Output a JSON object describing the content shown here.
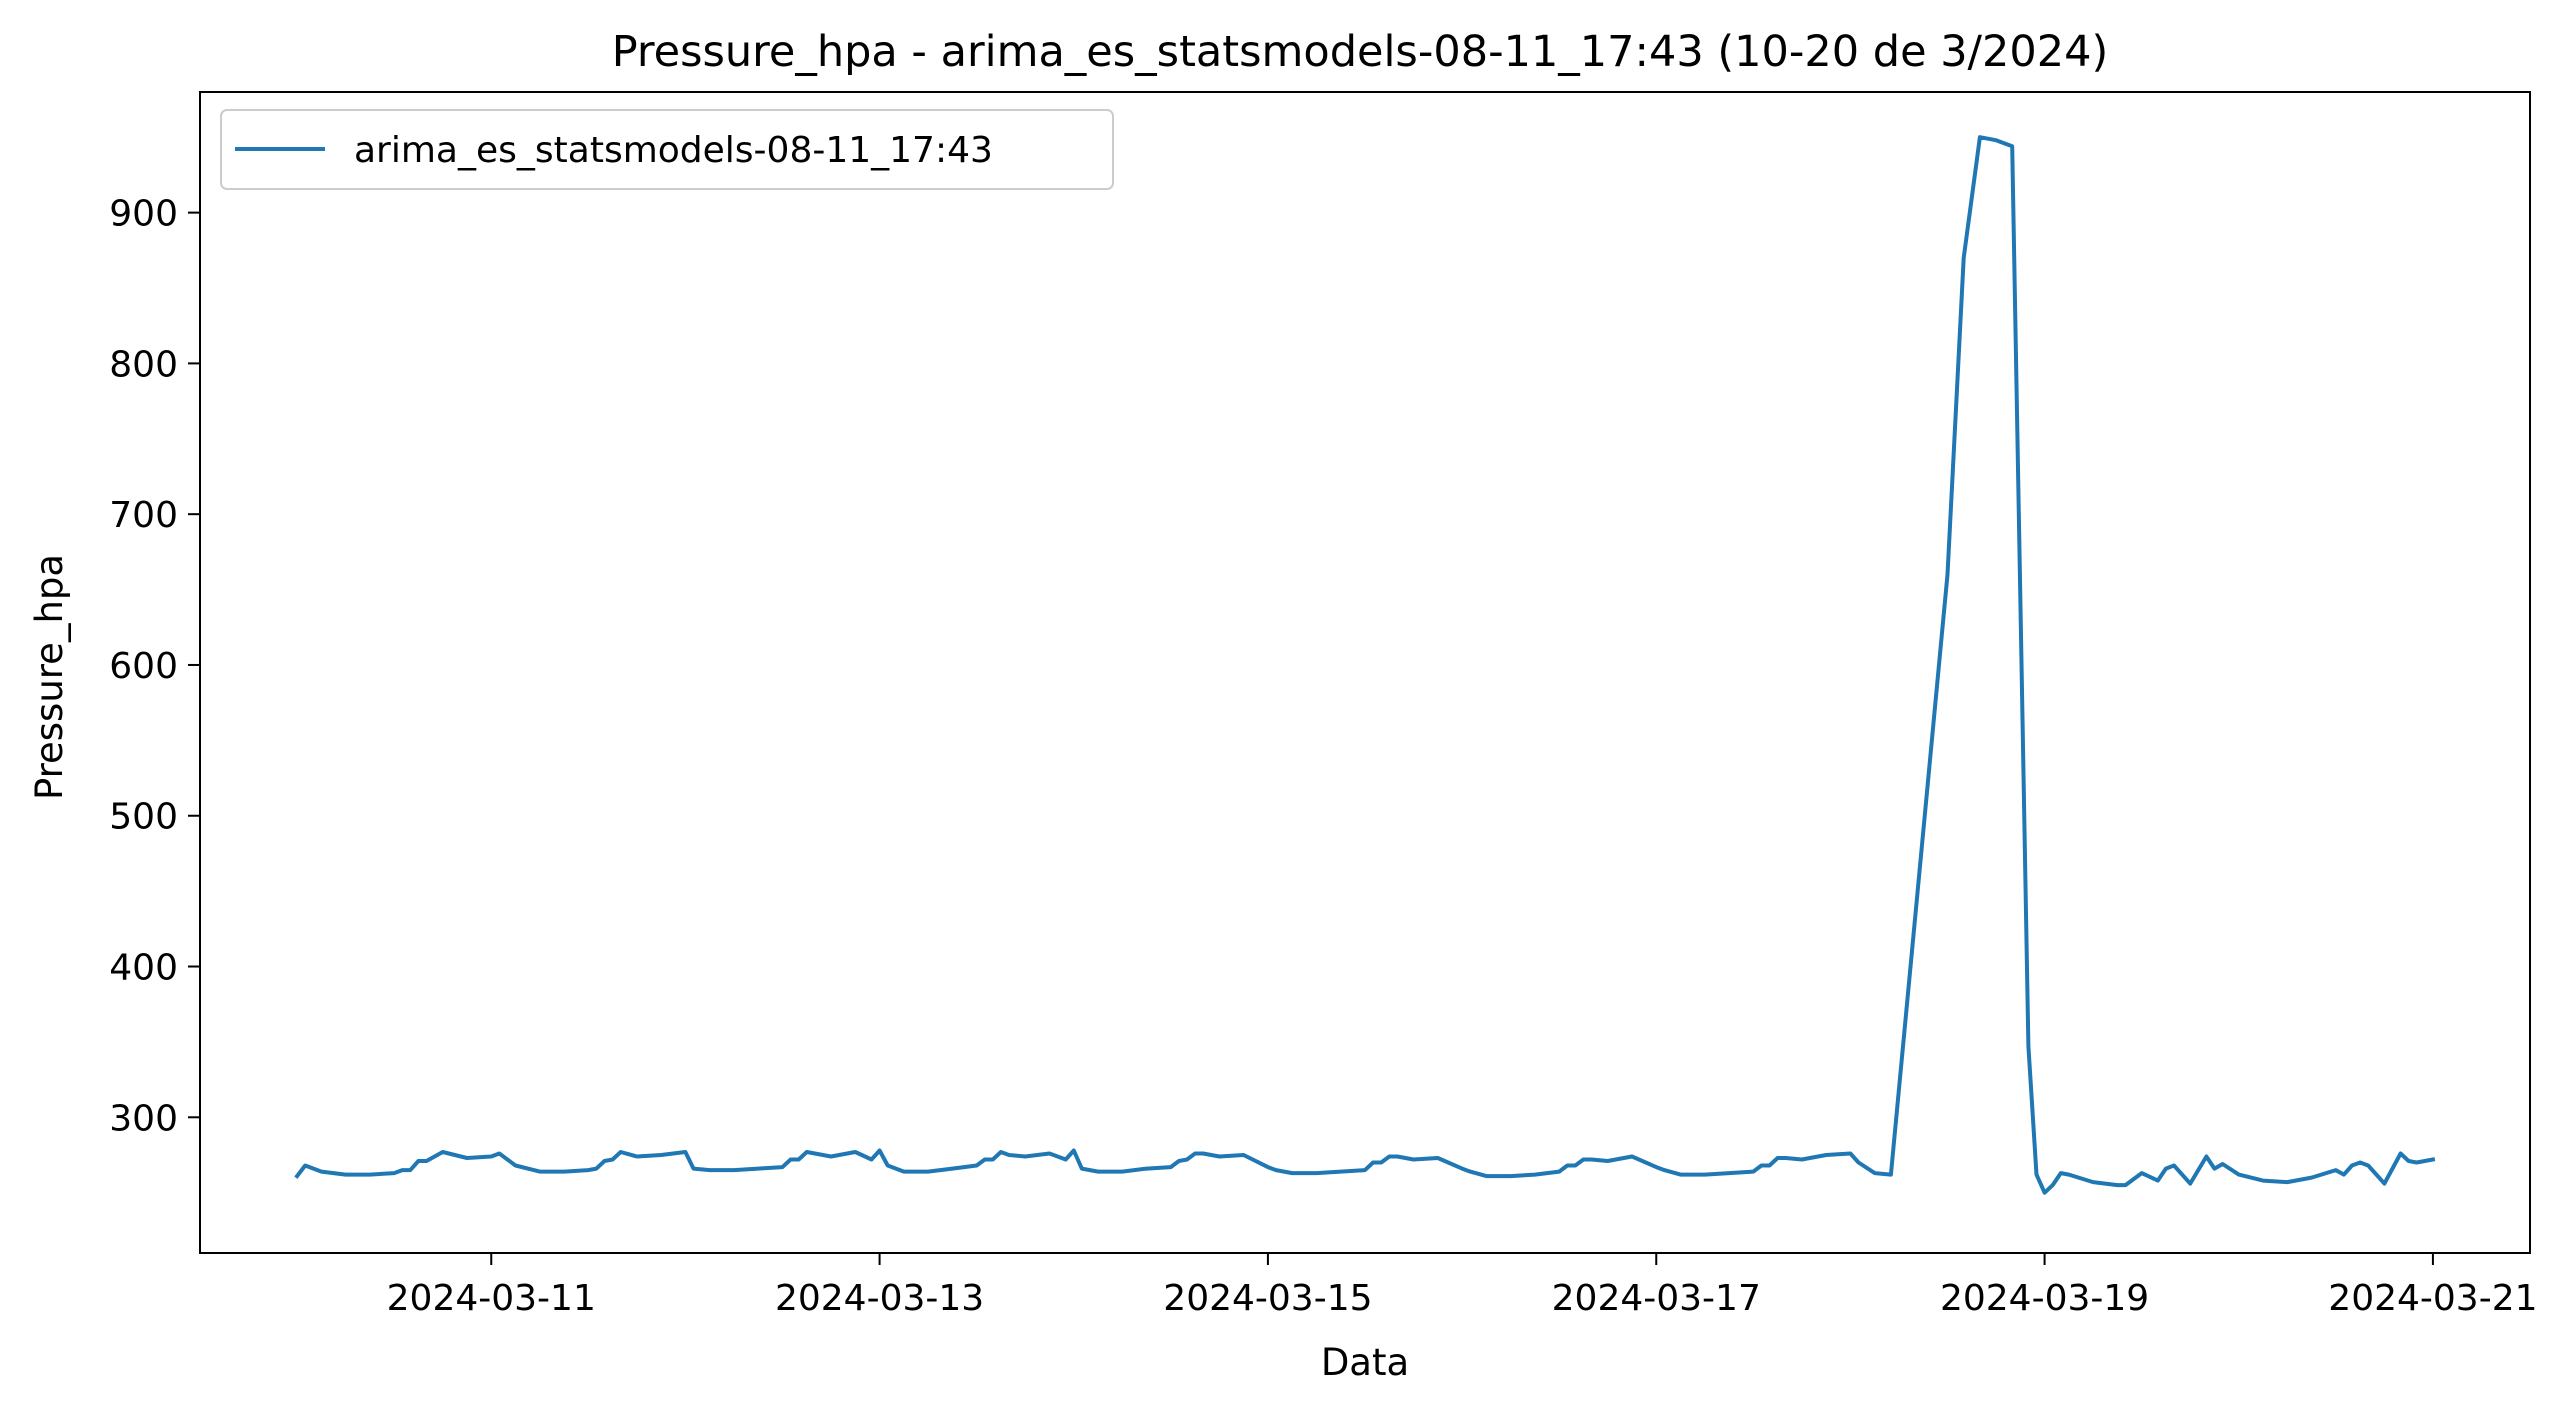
{
  "chart_data": {
    "type": "line",
    "title": "Pressure_hpa - arima_es_statsmodels-08-11_17:43 (10-20 de 3/2024)",
    "xlabel": "Data",
    "ylabel": "Pressure_hpa",
    "xlim": [
      "2024-03-09T12:00",
      "2024-03-21T12:00"
    ],
    "ylim": [
      210,
      980
    ],
    "x_ticks": [
      "2024-03-11",
      "2024-03-13",
      "2024-03-15",
      "2024-03-17",
      "2024-03-19",
      "2024-03-21"
    ],
    "y_ticks": [
      300,
      400,
      500,
      600,
      700,
      800,
      900
    ],
    "grid": false,
    "legend": {
      "position": "top-left",
      "entries": [
        "arima_es_statsmodels-08-11_17:43"
      ]
    },
    "series": [
      {
        "name": "arima_es_statsmodels-08-11_17:43",
        "color": "#1f77b4",
        "x": [
          "2024-03-10T00:00",
          "2024-03-10T01:00",
          "2024-03-10T03:00",
          "2024-03-10T06:00",
          "2024-03-10T09:00",
          "2024-03-10T12:00",
          "2024-03-10T13:00",
          "2024-03-10T14:00",
          "2024-03-10T15:00",
          "2024-03-10T16:00",
          "2024-03-10T18:00",
          "2024-03-10T21:00",
          "2024-03-11T00:00",
          "2024-03-11T01:00",
          "2024-03-11T03:00",
          "2024-03-11T06:00",
          "2024-03-11T09:00",
          "2024-03-11T12:00",
          "2024-03-11T13:00",
          "2024-03-11T14:00",
          "2024-03-11T15:00",
          "2024-03-11T16:00",
          "2024-03-11T18:00",
          "2024-03-11T21:00",
          "2024-03-12T00:00",
          "2024-03-12T01:00",
          "2024-03-12T03:00",
          "2024-03-12T06:00",
          "2024-03-12T09:00",
          "2024-03-12T12:00",
          "2024-03-12T13:00",
          "2024-03-12T14:00",
          "2024-03-12T15:00",
          "2024-03-12T16:00",
          "2024-03-12T18:00",
          "2024-03-12T21:00",
          "2024-03-12T23:00",
          "2024-03-13T00:00",
          "2024-03-13T01:00",
          "2024-03-13T03:00",
          "2024-03-13T06:00",
          "2024-03-13T09:00",
          "2024-03-13T12:00",
          "2024-03-13T13:00",
          "2024-03-13T14:00",
          "2024-03-13T15:00",
          "2024-03-13T16:00",
          "2024-03-13T18:00",
          "2024-03-13T21:00",
          "2024-03-13T23:00",
          "2024-03-14T00:00",
          "2024-03-14T01:00",
          "2024-03-14T03:00",
          "2024-03-14T06:00",
          "2024-03-14T09:00",
          "2024-03-14T12:00",
          "2024-03-14T13:00",
          "2024-03-14T14:00",
          "2024-03-14T15:00",
          "2024-03-14T16:00",
          "2024-03-14T18:00",
          "2024-03-14T21:00",
          "2024-03-15T00:00",
          "2024-03-15T01:00",
          "2024-03-15T03:00",
          "2024-03-15T06:00",
          "2024-03-15T09:00",
          "2024-03-15T12:00",
          "2024-03-15T13:00",
          "2024-03-15T14:00",
          "2024-03-15T15:00",
          "2024-03-15T16:00",
          "2024-03-15T18:00",
          "2024-03-15T21:00",
          "2024-03-16T00:00",
          "2024-03-16T01:00",
          "2024-03-16T03:00",
          "2024-03-16T06:00",
          "2024-03-16T09:00",
          "2024-03-16T12:00",
          "2024-03-16T13:00",
          "2024-03-16T14:00",
          "2024-03-16T15:00",
          "2024-03-16T16:00",
          "2024-03-16T18:00",
          "2024-03-16T21:00",
          "2024-03-17T00:00",
          "2024-03-17T01:00",
          "2024-03-17T03:00",
          "2024-03-17T06:00",
          "2024-03-17T09:00",
          "2024-03-17T12:00",
          "2024-03-17T13:00",
          "2024-03-17T14:00",
          "2024-03-17T15:00",
          "2024-03-17T16:00",
          "2024-03-17T18:00",
          "2024-03-17T21:00",
          "2024-03-18T00:00",
          "2024-03-18T01:00",
          "2024-03-18T03:00",
          "2024-03-18T05:00",
          "2024-03-18T12:00",
          "2024-03-18T14:00",
          "2024-03-18T16:00",
          "2024-03-18T18:00",
          "2024-03-18T20:00",
          "2024-03-18T22:00",
          "2024-03-18T23:00",
          "2024-03-19T00:00",
          "2024-03-19T01:00",
          "2024-03-19T02:00",
          "2024-03-19T03:00",
          "2024-03-19T06:00",
          "2024-03-19T09:00",
          "2024-03-19T10:00",
          "2024-03-19T12:00",
          "2024-03-19T14:00",
          "2024-03-19T15:00",
          "2024-03-19T16:00",
          "2024-03-19T18:00",
          "2024-03-19T20:00",
          "2024-03-19T21:00",
          "2024-03-19T22:00",
          "2024-03-20T00:00",
          "2024-03-20T03:00",
          "2024-03-20T06:00",
          "2024-03-20T09:00",
          "2024-03-20T12:00",
          "2024-03-20T13:00",
          "2024-03-20T14:00",
          "2024-03-20T15:00",
          "2024-03-20T16:00",
          "2024-03-20T18:00",
          "2024-03-20T20:00",
          "2024-03-20T21:00",
          "2024-03-20T22:00",
          "2024-03-21T00:00"
        ],
        "values": [
          261,
          268,
          264,
          262,
          262,
          263,
          265,
          265,
          271,
          271,
          277,
          273,
          274,
          276,
          268,
          264,
          264,
          265,
          266,
          271,
          272,
          277,
          274,
          275,
          277,
          266,
          265,
          265,
          266,
          267,
          272,
          272,
          277,
          276,
          274,
          277,
          272,
          278,
          268,
          264,
          264,
          266,
          268,
          272,
          272,
          277,
          275,
          274,
          276,
          272,
          278,
          266,
          264,
          264,
          266,
          267,
          271,
          272,
          276,
          276,
          274,
          275,
          267,
          265,
          263,
          263,
          264,
          265,
          270,
          270,
          274,
          274,
          272,
          273,
          266,
          264,
          261,
          261,
          262,
          264,
          268,
          268,
          272,
          272,
          271,
          274,
          267,
          265,
          262,
          262,
          263,
          264,
          268,
          268,
          273,
          273,
          272,
          275,
          276,
          270,
          263,
          262,
          660,
          870,
          950,
          948,
          944,
          347,
          262,
          250,
          255,
          263,
          262,
          257,
          255,
          255,
          263,
          258,
          266,
          268,
          256,
          274,
          266,
          269,
          262,
          258,
          257,
          260,
          265,
          262,
          268,
          270,
          268,
          256,
          276,
          271,
          270,
          272
        ]
      }
    ]
  }
}
